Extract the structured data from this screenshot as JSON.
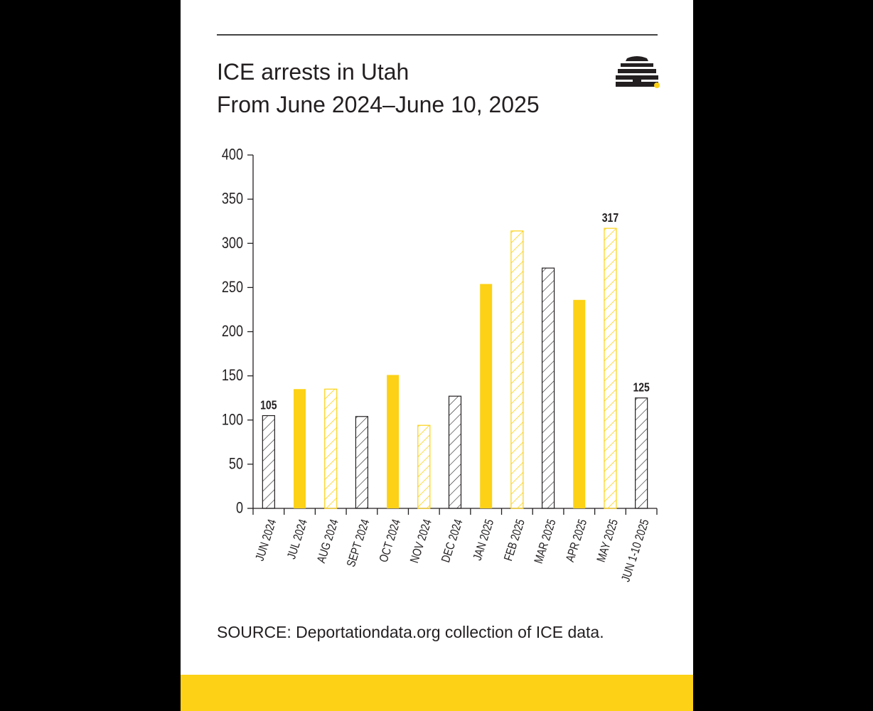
{
  "header": {
    "title_line1": "ICE arrests in Utah",
    "title_line2": "From June 2024–June 10, 2025",
    "logo_icon": "beehive-icon"
  },
  "footer": {
    "source": "SOURCE: Deportationdata.org collection of ICE data."
  },
  "colors": {
    "yellow": "#fcd116",
    "dark": "#231f20",
    "background": "#000000",
    "card": "#ffffff"
  },
  "chart_data": {
    "type": "bar",
    "title": "ICE arrests in Utah",
    "subtitle": "From June 2024–June 10, 2025",
    "xlabel": "",
    "ylabel": "",
    "ylim": [
      0,
      400
    ],
    "yticks": [
      0,
      50,
      100,
      150,
      200,
      250,
      300,
      350,
      400
    ],
    "grid": false,
    "legend": "none",
    "categories": [
      "JUN 2024",
      "JUL 2024",
      "AUG 2024",
      "SEPT 2024",
      "OCT 2024",
      "NOV 2024",
      "DEC 2024",
      "JAN 2025",
      "FEB 2025",
      "MAR 2025",
      "APR 2025",
      "MAY 2025",
      "JUN 1-10 2025"
    ],
    "values": [
      105,
      135,
      135,
      104,
      151,
      94,
      127,
      254,
      314,
      272,
      236,
      317,
      125
    ],
    "bar_styles": [
      "hatch-dark",
      "solid-yellow",
      "hatch-yellow",
      "hatch-dark",
      "solid-yellow",
      "hatch-yellow",
      "hatch-dark",
      "solid-yellow",
      "hatch-yellow",
      "hatch-dark",
      "solid-yellow",
      "hatch-yellow",
      "hatch-dark"
    ],
    "data_labels": [
      {
        "index": 0,
        "text": "105"
      },
      {
        "index": 11,
        "text": "317"
      },
      {
        "index": 12,
        "text": "125"
      }
    ]
  }
}
